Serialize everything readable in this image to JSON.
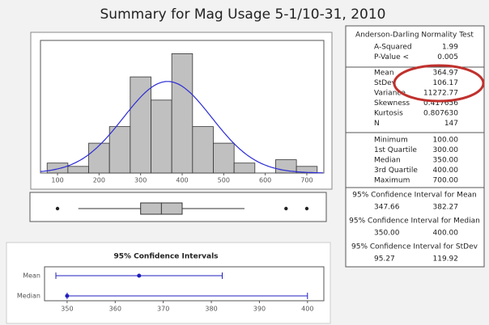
{
  "title": "Summary for Mag Usage 5-1/10-31, 2010",
  "chart_data": [
    {
      "type": "histogram",
      "bins": [
        75,
        125,
        175,
        225,
        275,
        325,
        375,
        425,
        475,
        525,
        575,
        625,
        675,
        725
      ],
      "values": [
        3,
        2,
        9,
        14,
        29,
        22,
        36,
        14,
        9,
        3,
        0,
        4,
        2
      ],
      "color": "#c0c0c0",
      "curve_color": "#2b2bd6",
      "xlim": [
        59,
        741
      ],
      "ylim": [
        0,
        40
      ],
      "xticks": [
        100,
        200,
        300,
        400,
        500,
        600,
        700
      ]
    },
    {
      "type": "box",
      "whisker_low": 150,
      "q1": 300,
      "median": 350,
      "q3": 400,
      "whisker_high": 550,
      "outliers": [
        100,
        650,
        700
      ],
      "color": "#c0c0c0",
      "xlim": [
        59,
        741
      ]
    },
    {
      "type": "interval",
      "title": "95% Confidence Intervals",
      "categories": [
        "Mean",
        "Median"
      ],
      "values": [
        364.97,
        350
      ],
      "lower": [
        347.66,
        350
      ],
      "upper": [
        382.27,
        400
      ],
      "color": "#1f1fbf",
      "xlim": [
        345.3,
        403.4
      ],
      "xticks": [
        350,
        360,
        370,
        380,
        390,
        400
      ]
    }
  ],
  "stats_panel": {
    "normality_title": "Anderson-Darling Normality Test",
    "normality": [
      {
        "label": "A-Squared",
        "value": "1.99"
      },
      {
        "label": "P-Value <",
        "value": "0.005"
      }
    ],
    "descriptive": [
      {
        "label": "Mean",
        "value": "364.97"
      },
      {
        "label": "StDev",
        "value": "106.17"
      },
      {
        "label": "Variance",
        "value": "11272.77"
      },
      {
        "label": "Skewness",
        "value": "0.417656"
      },
      {
        "label": "Kurtosis",
        "value": "0.807630"
      },
      {
        "label": "N",
        "value": "147"
      }
    ],
    "quantiles": [
      {
        "label": "Minimum",
        "value": "100.00"
      },
      {
        "label": "1st Quartile",
        "value": "300.00"
      },
      {
        "label": "Median",
        "value": "350.00"
      },
      {
        "label": "3rd Quartile",
        "value": "400.00"
      },
      {
        "label": "Maximum",
        "value": "700.00"
      }
    ],
    "intervals": [
      {
        "title": "95% Confidence Interval for Mean",
        "low": "347.66",
        "high": "382.27"
      },
      {
        "title": "95% Confidence Interval for Median",
        "low": "350.00",
        "high": "400.00"
      },
      {
        "title": "95% Confidence Interval for StDev",
        "low": "95.27",
        "high": "119.92"
      }
    ]
  }
}
